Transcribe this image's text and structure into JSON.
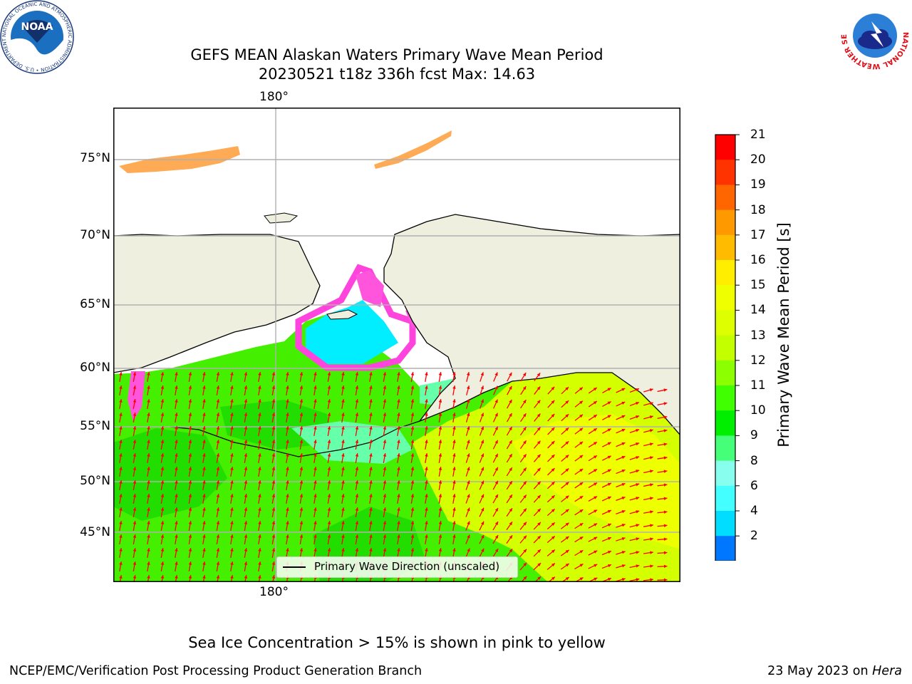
{
  "header": {
    "title_line1": "GEFS MEAN Alaskan Waters Primary Wave Mean Period",
    "title_line2": "20230521 t18z 336h fcst   Max: 14.63"
  },
  "logos": {
    "left": {
      "name": "NOAA",
      "ring_text": "NATIONAL OCEANIC AND ATMOSPHERIC ADMINISTRATION • U.S. DEPARTMENT OF COMMERCE •"
    },
    "right": {
      "name": "NATIONAL WEATHER SERVICE"
    }
  },
  "map": {
    "lon_labels": [
      "180°"
    ],
    "lat_labels": [
      "75°N",
      "70°N",
      "65°N",
      "60°N",
      "55°N",
      "50°N",
      "45°N"
    ],
    "legend_label": "Primary Wave Direction (unscaled)",
    "arrow_color": "#ff0000",
    "land_color": "#efefdf"
  },
  "colorbar": {
    "label": "Primary Wave Mean Period [s]",
    "ticks": [
      "21",
      "20",
      "19",
      "18",
      "17",
      "16",
      "15",
      "14",
      "13",
      "12",
      "11",
      "10",
      "9",
      "8",
      "6",
      "4",
      "2"
    ],
    "colors": [
      "#ff0000",
      "#ff3300",
      "#ff6600",
      "#ff9900",
      "#ffbb00",
      "#ffee00",
      "#f0ff00",
      "#ddff00",
      "#c4ff00",
      "#8cff00",
      "#40ff00",
      "#00ee00",
      "#44ff77",
      "#88ffee",
      "#44ffff",
      "#00ddff",
      "#0077ff"
    ],
    "extend_color": "#0000ff"
  },
  "footer": {
    "note": "Sea Ice Concentration > 15% is shown in pink to yellow",
    "credit": "NCEP/EMC/Verification Post Processing Product Generation Branch",
    "date_prefix": "23 May 2023 on ",
    "date_machine": "Hera"
  }
}
